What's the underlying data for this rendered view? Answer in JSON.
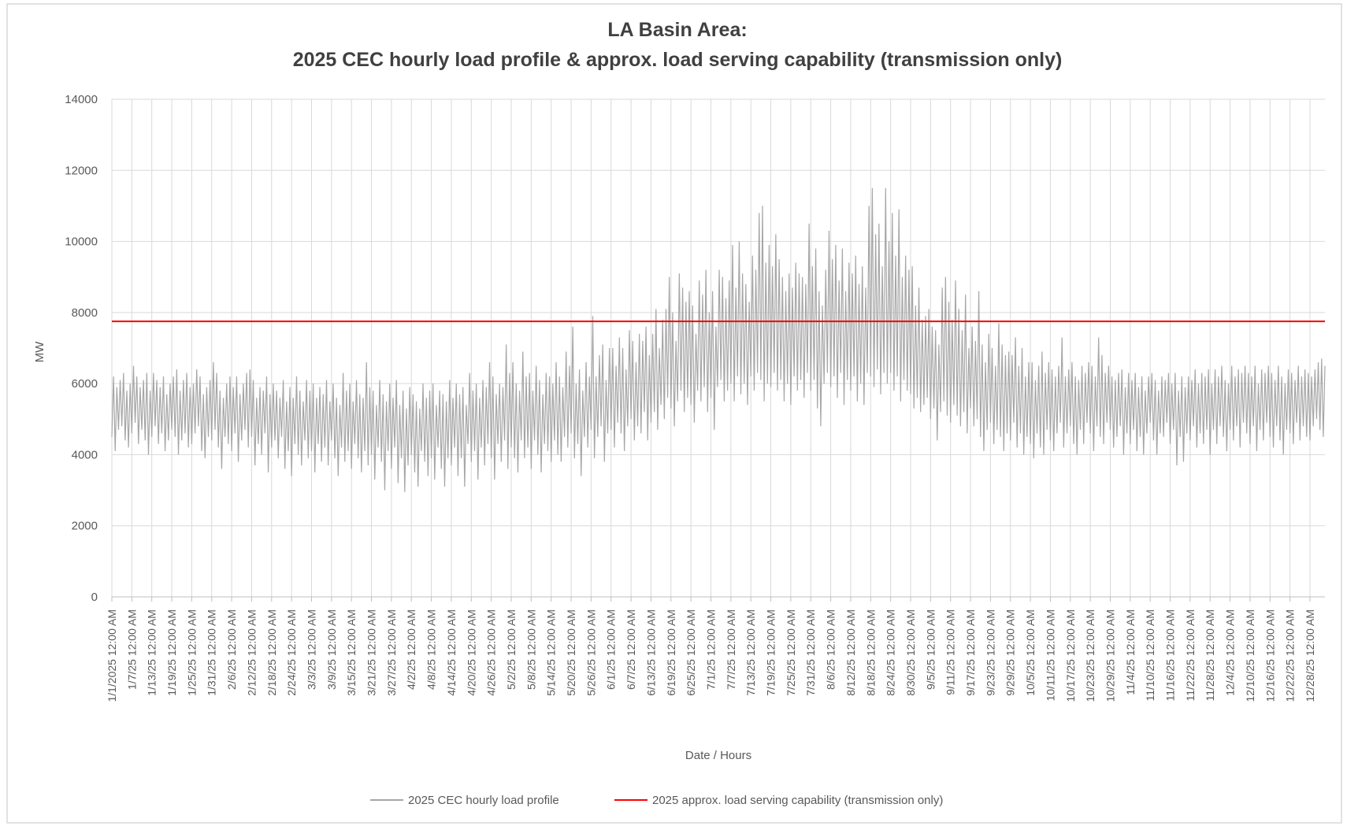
{
  "chart_data": {
    "type": "line",
    "title": "LA Basin Area:",
    "subtitle": "2025 CEC hourly load profile & approx. load serving capability (transmission only)",
    "y_label": "MW",
    "x_label": "Date / Hours",
    "ylim": [
      0,
      14000
    ],
    "yticks": [
      0,
      2000,
      4000,
      6000,
      8000,
      10000,
      12000,
      14000
    ],
    "xlim": [
      0,
      729
    ],
    "grid": true,
    "legend": "bottom",
    "xticks": [
      {
        "value": 0,
        "label": "1/1/2025 12:00 AM"
      },
      {
        "value": 12,
        "label": "1/7/25 12:00 AM"
      },
      {
        "value": 24,
        "label": "1/13/25 12:00 AM"
      },
      {
        "value": 36,
        "label": "1/19/25 12:00 AM"
      },
      {
        "value": 48,
        "label": "1/25/25 12:00 AM"
      },
      {
        "value": 60,
        "label": "1/31/25 12:00 AM"
      },
      {
        "value": 72,
        "label": "2/6/25 12:00 AM"
      },
      {
        "value": 84,
        "label": "2/12/25 12:00 AM"
      },
      {
        "value": 96,
        "label": "2/18/25 12:00 AM"
      },
      {
        "value": 108,
        "label": "2/24/25 12:00 AM"
      },
      {
        "value": 120,
        "label": "3/3/25 12:00 AM"
      },
      {
        "value": 132,
        "label": "3/9/25 12:00 AM"
      },
      {
        "value": 144,
        "label": "3/15/25 12:00 AM"
      },
      {
        "value": 156,
        "label": "3/21/25 12:00 AM"
      },
      {
        "value": 168,
        "label": "3/27/25 12:00 AM"
      },
      {
        "value": 180,
        "label": "4/2/25 12:00 AM"
      },
      {
        "value": 192,
        "label": "4/8/25 12:00 AM"
      },
      {
        "value": 204,
        "label": "4/14/25 12:00 AM"
      },
      {
        "value": 216,
        "label": "4/20/25 12:00 AM"
      },
      {
        "value": 228,
        "label": "4/26/25 12:00 AM"
      },
      {
        "value": 240,
        "label": "5/2/25 12:00 AM"
      },
      {
        "value": 252,
        "label": "5/8/25 12:00 AM"
      },
      {
        "value": 264,
        "label": "5/14/25 12:00 AM"
      },
      {
        "value": 276,
        "label": "5/20/25 12:00 AM"
      },
      {
        "value": 288,
        "label": "5/26/25 12:00 AM"
      },
      {
        "value": 300,
        "label": "6/1/25 12:00 AM"
      },
      {
        "value": 312,
        "label": "6/7/25 12:00 AM"
      },
      {
        "value": 324,
        "label": "6/13/25 12:00 AM"
      },
      {
        "value": 336,
        "label": "6/19/25 12:00 AM"
      },
      {
        "value": 348,
        "label": "6/25/25 12:00 AM"
      },
      {
        "value": 360,
        "label": "7/1/25 12:00 AM"
      },
      {
        "value": 372,
        "label": "7/7/25 12:00 AM"
      },
      {
        "value": 384,
        "label": "7/13/25 12:00 AM"
      },
      {
        "value": 396,
        "label": "7/19/25 12:00 AM"
      },
      {
        "value": 408,
        "label": "7/25/25 12:00 AM"
      },
      {
        "value": 420,
        "label": "7/31/25 12:00 AM"
      },
      {
        "value": 432,
        "label": "8/6/25 12:00 AM"
      },
      {
        "value": 444,
        "label": "8/12/25 12:00 AM"
      },
      {
        "value": 456,
        "label": "8/18/25 12:00 AM"
      },
      {
        "value": 468,
        "label": "8/24/25 12:00 AM"
      },
      {
        "value": 480,
        "label": "8/30/25 12:00 AM"
      },
      {
        "value": 492,
        "label": "9/5/25 12:00 AM"
      },
      {
        "value": 504,
        "label": "9/11/25 12:00 AM"
      },
      {
        "value": 516,
        "label": "9/17/25 12:00 AM"
      },
      {
        "value": 528,
        "label": "9/23/25 12:00 AM"
      },
      {
        "value": 540,
        "label": "9/29/25 12:00 AM"
      },
      {
        "value": 552,
        "label": "10/5/25 12:00 AM"
      },
      {
        "value": 564,
        "label": "10/11/25 12:00 AM"
      },
      {
        "value": 576,
        "label": "10/17/25 12:00 AM"
      },
      {
        "value": 588,
        "label": "10/23/25 12:00 AM"
      },
      {
        "value": 600,
        "label": "10/29/25 12:00 AM"
      },
      {
        "value": 612,
        "label": "11/4/25 12:00 AM"
      },
      {
        "value": 624,
        "label": "11/10/25 12:00 AM"
      },
      {
        "value": 636,
        "label": "11/16/25 12:00 AM"
      },
      {
        "value": 648,
        "label": "11/22/25 12:00 AM"
      },
      {
        "value": 660,
        "label": "11/28/25 12:00 AM"
      },
      {
        "value": 672,
        "label": "12/4/25 12:00 AM"
      },
      {
        "value": 684,
        "label": "12/10/25 12:00 AM"
      },
      {
        "value": 696,
        "label": "12/16/25 12:00 AM"
      },
      {
        "value": 708,
        "label": "12/22/25 12:00 AM"
      },
      {
        "value": 720,
        "label": "12/28/25 12:00 AM"
      }
    ],
    "series": [
      {
        "name": "2025 CEC hourly load profile",
        "color": "#a6a6a6",
        "values": [
          4500,
          6200,
          4100,
          5900,
          4700,
          6100,
          4800,
          6300,
          4400,
          5800,
          4200,
          6000,
          4600,
          6500,
          4900,
          6200,
          4300,
          5900,
          4700,
          6100,
          4400,
          6300,
          4000,
          5800,
          4500,
          6300,
          4800,
          6100,
          4300,
          5900,
          4600,
          6200,
          4100,
          5700,
          4400,
          6000,
          4700,
          6200,
          4500,
          6400,
          4000,
          5800,
          4400,
          6100,
          4600,
          6300,
          4200,
          5900,
          4300,
          6000,
          4600,
          6400,
          4800,
          6200,
          4100,
          5700,
          3900,
          5900,
          4500,
          6100,
          4400,
          6600,
          4700,
          6300,
          4200,
          5800,
          3600,
          5600,
          4500,
          6000,
          4300,
          6200,
          4100,
          5900,
          4600,
          6200,
          3800,
          5700,
          4400,
          6000,
          4700,
          6300,
          4200,
          6400,
          4500,
          6100,
          3700,
          5600,
          4300,
          5900,
          4000,
          5800,
          4600,
          6200,
          3500,
          5700,
          4200,
          6000,
          4400,
          5800,
          3900,
          5600,
          4500,
          6100,
          3600,
          5500,
          4100,
          5900,
          3400,
          5600,
          4300,
          6200,
          4000,
          5800,
          3700,
          5500,
          4400,
          6100,
          3900,
          5800,
          4100,
          6000,
          3500,
          5600,
          4300,
          5900,
          3800,
          5700,
          4200,
          6100,
          3700,
          5500,
          4400,
          6000,
          3900,
          5600,
          3400,
          5400,
          4200,
          6300,
          3800,
          5800,
          4100,
          6000,
          3600,
          5500,
          4300,
          6100,
          3900,
          5700,
          3500,
          5600,
          4100,
          6600,
          3700,
          5900,
          4000,
          5800,
          3300,
          5400,
          4200,
          6100,
          3800,
          5700,
          3000,
          5500,
          4100,
          6000,
          3600,
          5600,
          4200,
          6100,
          3200,
          5400,
          3900,
          5800,
          2950,
          5300,
          3700,
          5900,
          4000,
          5700,
          3500,
          5500,
          3100,
          5300,
          4100,
          6000,
          3800,
          5600,
          3400,
          5800,
          3900,
          6000,
          3300,
          5400,
          4200,
          5800,
          3600,
          5700,
          3100,
          5500,
          3900,
          6100,
          3700,
          5600,
          4200,
          6000,
          3400,
          5700,
          3900,
          5900,
          3100,
          5400,
          4300,
          6300,
          3800,
          5800,
          4100,
          6000,
          3300,
          5600,
          4200,
          6100,
          3700,
          5900,
          4300,
          6600,
          3900,
          6200,
          3300,
          5700,
          4300,
          6000,
          3800,
          5900,
          4400,
          7100,
          3600,
          6300,
          4200,
          6600,
          3900,
          6000,
          3500,
          5800,
          4400,
          6900,
          3900,
          6200,
          4200,
          6300,
          3600,
          5800,
          4400,
          6500,
          4000,
          6100,
          3500,
          5700,
          4300,
          6300,
          4100,
          6200,
          3800,
          6000,
          4400,
          6600,
          4000,
          6200,
          3800,
          5900,
          4500,
          6900,
          4200,
          6500,
          4600,
          7600,
          3900,
          6000,
          4300,
          6400,
          3400,
          5800,
          4500,
          6600,
          4200,
          6200,
          4700,
          7900,
          3900,
          6200,
          4500,
          6800,
          4800,
          7100,
          3800,
          6100,
          4600,
          7000,
          4700,
          7000,
          4200,
          6500,
          4900,
          7300,
          4600,
          7000,
          4100,
          6400,
          4800,
          7500,
          5000,
          7200,
          4400,
          6600,
          4800,
          7400,
          4600,
          7200,
          5200,
          7600,
          4400,
          6800,
          4900,
          7400,
          5200,
          8100,
          4700,
          7000,
          5400,
          7800,
          5000,
          8100,
          5600,
          9000,
          5300,
          8000,
          4800,
          7200,
          5500,
          9100,
          5800,
          8700,
          5200,
          8300,
          5600,
          8600,
          5400,
          8200,
          4900,
          7400,
          5800,
          8900,
          5500,
          8500,
          5900,
          9200,
          5200,
          8000,
          5600,
          8600,
          4700,
          7600,
          5900,
          9200,
          6100,
          9000,
          5500,
          8400,
          5800,
          8900,
          6000,
          9900,
          5500,
          8700,
          6200,
          10000,
          5700,
          9100,
          6000,
          8800,
          5400,
          8300,
          6200,
          9600,
          5800,
          9200,
          6300,
          10800,
          6100,
          11000,
          5500,
          9400,
          6000,
          9900,
          5900,
          9300,
          6300,
          10200,
          5800,
          9500,
          6100,
          9000,
          5500,
          8600,
          6000,
          9100,
          5400,
          8700,
          6200,
          9400,
          5800,
          9100,
          6100,
          9000,
          5600,
          8800,
          6300,
          10500,
          5800,
          9300,
          6100,
          9800,
          5300,
          8600,
          4800,
          8200,
          6000,
          9200,
          6300,
          10300,
          5900,
          9500,
          6200,
          9900,
          5600,
          8900,
          6300,
          9800,
          5400,
          8600,
          6100,
          9400,
          5800,
          9100,
          6200,
          9600,
          5500,
          8800,
          6000,
          9300,
          5400,
          8700,
          6300,
          11000,
          6200,
          11500,
          5900,
          10200,
          6400,
          10500,
          5700,
          9300,
          6300,
          11500,
          6000,
          10000,
          6300,
          10800,
          5800,
          9600,
          6200,
          10900,
          5500,
          9000,
          6100,
          9600,
          5800,
          9200,
          5700,
          9300,
          5300,
          8200,
          5600,
          8700,
          5200,
          7800,
          5400,
          7900,
          5600,
          8100,
          5000,
          7600,
          5300,
          7500,
          4400,
          7100,
          5200,
          8700,
          5500,
          9000,
          5100,
          8300,
          4900,
          7800,
          5400,
          8900,
          5100,
          8100,
          4800,
          7500,
          5200,
          8500,
          4600,
          7000,
          5300,
          7600,
          4800,
          7200,
          5000,
          8600,
          4500,
          7100,
          4100,
          6600,
          4700,
          7400,
          4900,
          7000,
          4300,
          6500,
          4700,
          7700,
          4500,
          7100,
          4100,
          6800,
          4600,
          6900,
          4400,
          6800,
          4900,
          7300,
          4200,
          6500,
          4600,
          7000,
          4000,
          6200,
          4500,
          6600,
          4300,
          6600,
          3900,
          6100,
          4600,
          6500,
          4200,
          6900,
          4000,
          6300,
          4700,
          6600,
          4400,
          6400,
          4100,
          6200,
          4600,
          6500,
          4900,
          7300,
          4200,
          6200,
          4600,
          6400,
          4800,
          6600,
          4300,
          6200,
          4000,
          6100,
          4700,
          6500,
          4300,
          6300,
          4900,
          6600,
          4600,
          6500,
          4100,
          6200,
          4800,
          7300,
          4500,
          6800,
          4300,
          6300,
          4900,
          6500,
          4700,
          6200,
          4200,
          6100,
          4500,
          6300,
          4800,
          6400,
          4000,
          5900,
          4600,
          6300,
          4300,
          6100,
          4700,
          6300,
          4100,
          5900,
          4500,
          6200,
          4000,
          5800,
          4600,
          6200,
          4900,
          6300,
          4400,
          6100,
          4000,
          5800,
          4600,
          6200,
          4500,
          6100,
          4900,
          6300,
          4300,
          6000,
          4700,
          6300,
          3700,
          5800,
          4500,
          6200,
          3800,
          5900,
          4600,
          6200,
          4400,
          6100,
          4800,
          6400,
          4200,
          6000,
          4600,
          6300,
          4300,
          6200,
          4700,
          6400,
          4000,
          6000,
          4700,
          6400,
          4300,
          6200,
          4800,
          6500,
          4500,
          6100,
          4100,
          6000,
          4700,
          6500,
          4400,
          6200,
          4800,
          6400,
          4200,
          6300,
          4900,
          6500,
          4600,
          6300,
          4300,
          6200,
          4800,
          6500,
          4100,
          6000,
          4700,
          6400,
          4400,
          6300,
          4900,
          6500,
          4500,
          6300,
          4200,
          6100,
          4800,
          6500,
          4400,
          6200,
          4000,
          6000,
          4700,
          6400,
          4600,
          6300,
          4300,
          6100,
          4900,
          6500,
          4400,
          6200,
          4800,
          6400,
          4500,
          6300,
          4400,
          6200,
          4800,
          6400,
          5000,
          6600,
          4700,
          6700,
          4500,
          6500
        ]
      },
      {
        "name": "2025 approx. load serving  capability (transmission only)",
        "color": "#ff0000",
        "type": "hline",
        "value": 7750
      }
    ]
  }
}
